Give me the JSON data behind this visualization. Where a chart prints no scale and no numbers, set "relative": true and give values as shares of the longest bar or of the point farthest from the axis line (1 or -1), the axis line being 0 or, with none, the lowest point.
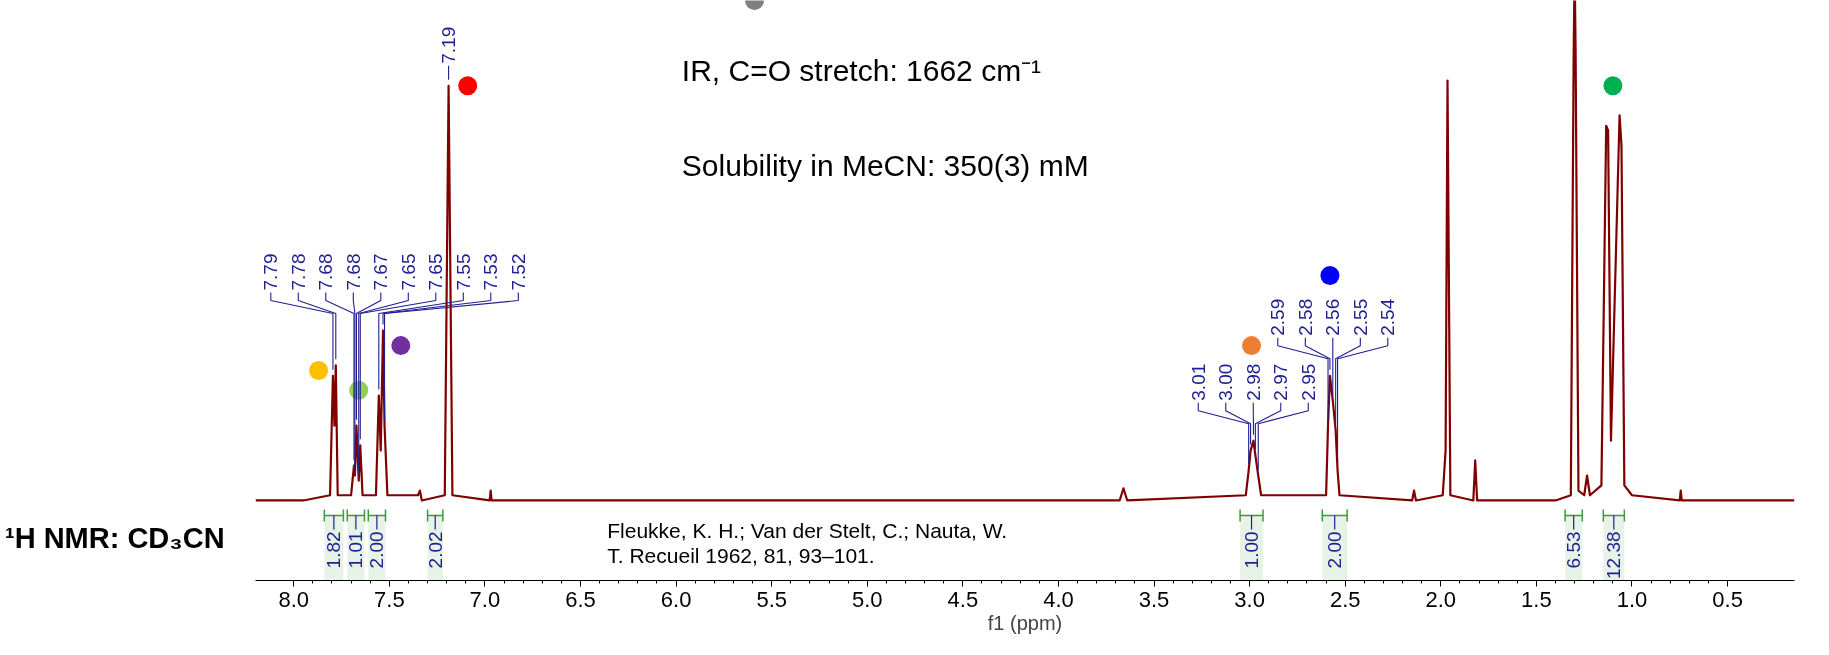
{
  "chart_data": {
    "type": "line",
    "title": "¹H NMR: CD₃CN",
    "xlabel": "f1 (ppm)",
    "relative": true,
    "grid": false,
    "tick_labels": "x",
    "xlim": [
      8.2,
      0.15
    ],
    "xticks": [
      {
        "value": 8,
        "label": "8.0"
      },
      7.5,
      {
        "value": 7,
        "label": "7.0"
      },
      6.5,
      {
        "value": 6,
        "label": "6.0"
      },
      5.5,
      {
        "value": 5,
        "label": "5.0"
      },
      4.5,
      {
        "value": 4,
        "label": "4.0"
      },
      3.5,
      {
        "value": 3,
        "label": "3.0"
      },
      2.5,
      {
        "value": 2,
        "label": "2.0"
      },
      1.5,
      {
        "value": 1,
        "label": "1.0"
      },
      0.5
    ],
    "series": [
      {
        "type": "line",
        "color": "#800000",
        "x": [
          8.2,
          7.95,
          7.81,
          7.795,
          7.787,
          7.78,
          7.77,
          7.7,
          7.685,
          7.68,
          7.672,
          7.66,
          7.652,
          7.64,
          7.57,
          7.555,
          7.545,
          7.533,
          7.525,
          7.51,
          7.35,
          7.34,
          7.33,
          7.21,
          7.19,
          7.17,
          6.975,
          6.97,
          6.965,
          3.68,
          3.66,
          3.64,
          3.02,
          3.005,
          2.995,
          2.98,
          2.97,
          2.955,
          2.94,
          2.6,
          2.59,
          2.58,
          2.565,
          2.55,
          2.54,
          2.53,
          2.15,
          2.14,
          2.13,
          1.99,
          1.975,
          1.965,
          1.95,
          1.83,
          1.82,
          1.81,
          1.4,
          1.32,
          1.305,
          1.302,
          1.298,
          1.295,
          1.28,
          1.25,
          1.235,
          1.22,
          1.16,
          1.135,
          1.125,
          1.11,
          1.065,
          1.055,
          1.04,
          1.0,
          0.75,
          0.745,
          0.74,
          0.15
        ],
        "values": [
          0.138,
          0.138,
          0.147,
          0.353,
          0.267,
          0.371,
          0.147,
          0.147,
          0.198,
          0.181,
          0.267,
          0.172,
          0.233,
          0.147,
          0.147,
          0.319,
          0.224,
          0.431,
          0.267,
          0.147,
          0.147,
          0.155,
          0.138,
          0.147,
          0.853,
          0.147,
          0.138,
          0.155,
          0.138,
          0.138,
          0.159,
          0.138,
          0.147,
          0.19,
          0.224,
          0.241,
          0.216,
          0.181,
          0.147,
          0.147,
          0.267,
          0.353,
          0.31,
          0.259,
          0.19,
          0.147,
          0.138,
          0.155,
          0.138,
          0.147,
          0.224,
          0.862,
          0.147,
          0.138,
          0.207,
          0.138,
          0.138,
          0.147,
          0.914,
          1.0,
          1.0,
          0.914,
          0.155,
          0.147,
          0.181,
          0.147,
          0.164,
          0.784,
          0.776,
          0.241,
          0.802,
          0.75,
          0.164,
          0.147,
          0.138,
          0.155,
          0.138,
          0.138
        ]
      },
      {
        "type": "scatter",
        "marker": "circle",
        "x": [
          7.87,
          7.66,
          7.44,
          7.09,
          5.59,
          2.99,
          2.58,
          1.1
        ],
        "values": [
          0.362,
          0.328,
          0.405,
          0.853,
          1.0,
          0.405,
          0.526,
          0.853
        ],
        "colors": [
          "#ffc000",
          "#92d050",
          "#7030a0",
          "#ff0000",
          "#808080",
          "#ed7d31",
          "#0000ff",
          "#00b050"
        ]
      }
    ],
    "bands": [
      {
        "axis": "x",
        "from": 7.84,
        "to": 7.74,
        "label": "1.82",
        "color": "#3a9a3a"
      },
      {
        "axis": "x",
        "from": 7.72,
        "to": 7.63,
        "label": "1.01",
        "color": "#3a9a3a"
      },
      {
        "axis": "x",
        "from": 7.61,
        "to": 7.52,
        "label": "2.00",
        "color": "#3a9a3a"
      },
      {
        "axis": "x",
        "from": 7.3,
        "to": 7.22,
        "label": "2.02",
        "color": "#3a9a3a"
      },
      {
        "axis": "x",
        "from": 3.05,
        "to": 2.93,
        "label": "1.00",
        "color": "#3a9a3a"
      },
      {
        "axis": "x",
        "from": 2.62,
        "to": 2.49,
        "label": "2.00",
        "color": "#3a9a3a"
      },
      {
        "axis": "x",
        "from": 1.35,
        "to": 1.26,
        "label": "6.53",
        "color": "#3a9a3a"
      },
      {
        "axis": "x",
        "from": 1.15,
        "to": 1.04,
        "label": "12.38",
        "color": "#3a9a3a"
      }
    ],
    "annotations": [
      "IR, C=O stretch: 1662 cm⁻¹",
      "Solubility in MeCN: 350(3) mM",
      "Fleukke, K. H.; Van der Stelt, C.; Nauta, W. T. Recueil 1962, 81, 93–101.",
      {
        "text": "7.79",
        "x": 7.795,
        "y": 0.353
      },
      {
        "text": "7.78",
        "x": 7.78,
        "y": 0.371
      },
      {
        "text": "7.68",
        "x": 7.685,
        "y": 0.198
      },
      {
        "text": "7.68",
        "x": 7.68,
        "y": 0.181
      },
      {
        "text": "7.67",
        "x": 7.672,
        "y": 0.267
      },
      {
        "text": "7.65",
        "x": 7.66,
        "y": 0.172
      },
      {
        "text": "7.65",
        "x": 7.652,
        "y": 0.233
      },
      {
        "text": "7.55",
        "x": 7.555,
        "y": 0.319
      },
      {
        "text": "7.53",
        "x": 7.533,
        "y": 0.431
      },
      {
        "text": "7.52",
        "x": 7.525,
        "y": 0.267
      },
      {
        "text": "7.19",
        "x": 7.19,
        "y": 0.853
      },
      {
        "text": "3.01",
        "x": 3.005,
        "y": 0.19
      },
      {
        "text": "3.00",
        "x": 2.995,
        "y": 0.224
      },
      {
        "text": "2.98",
        "x": 2.98,
        "y": 0.241
      },
      {
        "text": "2.97",
        "x": 2.97,
        "y": 0.216
      },
      {
        "text": "2.95",
        "x": 2.955,
        "y": 0.181
      },
      {
        "text": "2.59",
        "x": 2.59,
        "y": 0.267
      },
      {
        "text": "2.58",
        "x": 2.58,
        "y": 0.353
      },
      {
        "text": "2.56",
        "x": 2.565,
        "y": 0.31
      },
      {
        "text": "2.55",
        "x": 2.55,
        "y": 0.259
      },
      {
        "text": "2.54",
        "x": 2.54,
        "y": 0.19
      }
    ]
  }
}
